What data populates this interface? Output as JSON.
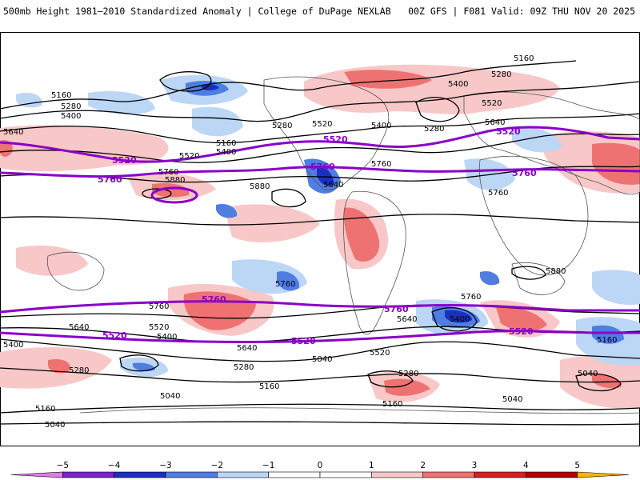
{
  "header": {
    "title": "500mb Height 1981–2010 Standardized Anomaly | College of DuPage NEXLAB",
    "run_info": "00Z GFS | F081 Valid: 09Z THU NOV 20 2025"
  },
  "colors": {
    "neg5": "#e07ae8",
    "neg4": "#7b22c8",
    "neg3": "#1b2fc0",
    "neg2": "#4f7ee0",
    "neg1": "#bcd6f5",
    "zero": "#ffffff",
    "pos1": "#f8c7c7",
    "pos2": "#ee7272",
    "pos3": "#d62020",
    "pos4": "#b40000",
    "pos5": "#ffb400",
    "contour": "#000000",
    "highlight": "#8a00c8"
  },
  "contour_labels": {
    "black": [
      "5160",
      "5280",
      "5400",
      "5520",
      "5640",
      "5760",
      "5880",
      "5040"
    ],
    "purple": [
      "5520",
      "5760"
    ]
  },
  "colorbar": {
    "ticks": [
      "−5",
      "−4",
      "−3",
      "−2",
      "−1",
      "0",
      "1",
      "2",
      "3",
      "4",
      "5"
    ]
  }
}
